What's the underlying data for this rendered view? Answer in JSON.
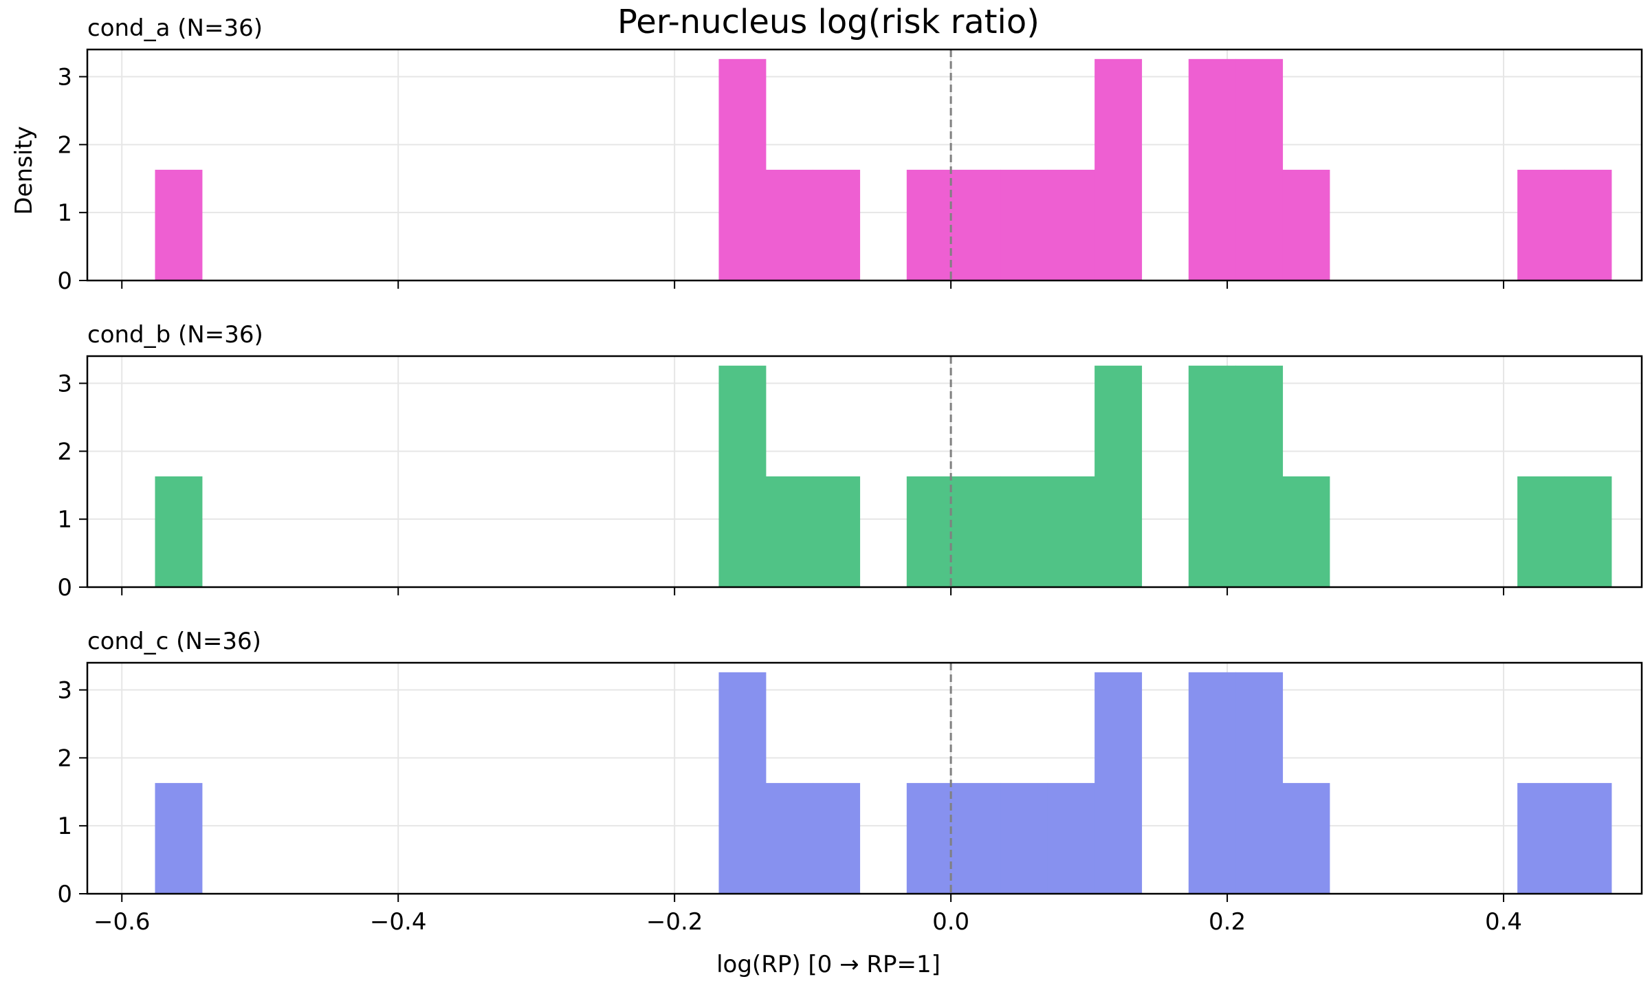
{
  "chart_data": {
    "type": "bar",
    "title": "Per-nucleus log(risk ratio)",
    "xlabel": "log(RP)  [0 → RP=1]",
    "ylabel": "Density",
    "xlim": [
      -0.625,
      0.5
    ],
    "ylim": [
      0,
      3.4
    ],
    "x_ticks": [
      -0.6,
      -0.4,
      -0.2,
      0.0,
      0.2,
      0.4
    ],
    "x_tick_labels": [
      "−0.6",
      "−0.4",
      "−0.2",
      "0.0",
      "0.2",
      "0.4"
    ],
    "y_ticks": [
      0,
      1,
      2,
      3
    ],
    "y_tick_labels": [
      "0",
      "1",
      "2",
      "3"
    ],
    "reference_line": 0.0,
    "grid": true,
    "bins": {
      "start": -0.576,
      "width": 0.034,
      "count": 31
    },
    "panels": [
      {
        "name": "cond_a",
        "title": "cond_a  (N=36)",
        "color": "#ee5fd2",
        "values": [
          1.63,
          0,
          0,
          0,
          0,
          0,
          0,
          0,
          0,
          0,
          0,
          0,
          3.26,
          1.63,
          1.63,
          0,
          1.63,
          1.63,
          1.63,
          1.63,
          3.26,
          0,
          3.26,
          3.26,
          1.63,
          0,
          0,
          0,
          0,
          1.63,
          1.63
        ]
      },
      {
        "name": "cond_b",
        "title": "cond_b  (N=36)",
        "color": "#50c386",
        "values": [
          1.63,
          0,
          0,
          0,
          0,
          0,
          0,
          0,
          0,
          0,
          0,
          0,
          3.26,
          1.63,
          1.63,
          0,
          1.63,
          1.63,
          1.63,
          1.63,
          3.26,
          0,
          3.26,
          3.26,
          1.63,
          0,
          0,
          0,
          0,
          1.63,
          1.63
        ]
      },
      {
        "name": "cond_c",
        "title": "cond_c  (N=36)",
        "color": "#8791ef",
        "values": [
          1.63,
          0,
          0,
          0,
          0,
          0,
          0,
          0,
          0,
          0,
          0,
          0,
          3.26,
          1.63,
          1.63,
          0,
          1.63,
          1.63,
          1.63,
          1.63,
          3.26,
          0,
          3.26,
          3.26,
          1.63,
          0,
          0,
          0,
          0,
          1.63,
          1.63
        ]
      }
    ]
  }
}
